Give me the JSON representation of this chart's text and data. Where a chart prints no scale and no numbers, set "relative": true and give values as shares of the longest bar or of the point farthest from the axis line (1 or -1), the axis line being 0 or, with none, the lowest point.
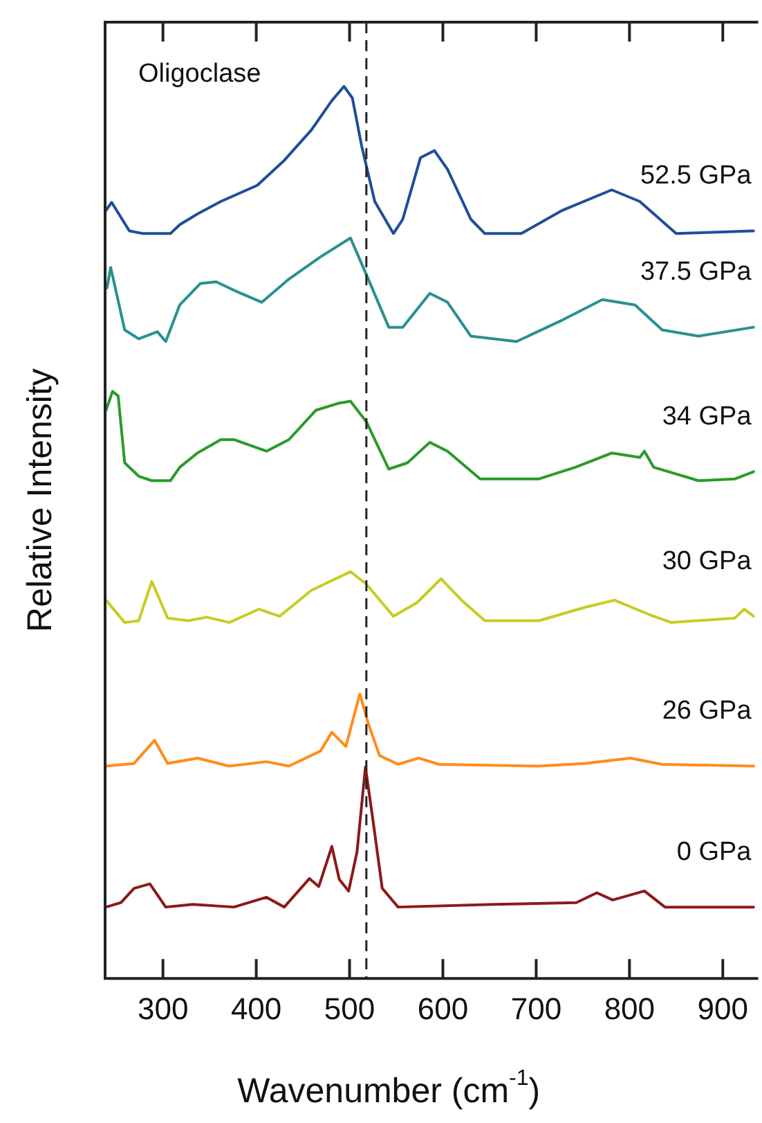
{
  "chart_data": {
    "type": "line",
    "xlabel": "Wavenumber (cm$^{-1}$)",
    "ylabel": "Relative Intensity",
    "relative": true,
    "annotations": [
      "Oligoclase"
    ],
    "xlim": [
      238,
      935
    ],
    "xticks": [
      300,
      400,
      500,
      600,
      700,
      800,
      900
    ],
    "grid": false,
    "legend": false,
    "marker": "none",
    "line_style": "solid",
    "ref_lines": [
      {
        "axis": "x",
        "value": 518,
        "color": "#222222",
        "line_style": "dashed"
      }
    ],
    "series": [
      {
        "name": "52.5 GPa",
        "color": "#1f4e99",
        "x": [
          239,
          245,
          264,
          279,
          308,
          318,
          337,
          362,
          401,
          430,
          459,
          481,
          494,
          503,
          513,
          527,
          547,
          557,
          576,
          591,
          605,
          630,
          645,
          684,
          728,
          781,
          811,
          850,
          933
        ],
        "values": [
          0.861,
          0.87,
          0.838,
          0.835,
          0.835,
          0.845,
          0.857,
          0.871,
          0.889,
          0.917,
          0.951,
          0.984,
          1.0,
          0.987,
          0.933,
          0.871,
          0.835,
          0.851,
          0.92,
          0.928,
          0.907,
          0.851,
          0.835,
          0.835,
          0.861,
          0.884,
          0.871,
          0.835,
          0.838
        ]
      },
      {
        "name": "37.5 GPa",
        "color": "#2a9090",
        "x": [
          240,
          244,
          259,
          274,
          294,
          303,
          318,
          340,
          357,
          377,
          406,
          435,
          469,
          501,
          518,
          542,
          557,
          586,
          605,
          630,
          679,
          728,
          771,
          806,
          835,
          874,
          933
        ],
        "values": [
          0.774,
          0.797,
          0.727,
          0.717,
          0.725,
          0.714,
          0.755,
          0.779,
          0.781,
          0.771,
          0.758,
          0.784,
          0.809,
          0.83,
          0.789,
          0.73,
          0.73,
          0.768,
          0.758,
          0.72,
          0.714,
          0.738,
          0.761,
          0.755,
          0.727,
          0.72,
          0.73
        ]
      },
      {
        "name": "34 GPa",
        "color": "#2a9a2a",
        "x": [
          239,
          246,
          252,
          259,
          274,
          288,
          308,
          318,
          337,
          362,
          376,
          411,
          435,
          464,
          489,
          501,
          518,
          542,
          562,
          586,
          605,
          640,
          703,
          742,
          781,
          811,
          816,
          826,
          874,
          913,
          933
        ],
        "values": [
          0.637,
          0.658,
          0.653,
          0.578,
          0.563,
          0.558,
          0.558,
          0.573,
          0.589,
          0.604,
          0.604,
          0.591,
          0.604,
          0.637,
          0.645,
          0.647,
          0.624,
          0.571,
          0.578,
          0.601,
          0.591,
          0.56,
          0.56,
          0.573,
          0.589,
          0.584,
          0.591,
          0.573,
          0.558,
          0.56,
          0.568
        ]
      },
      {
        "name": "30 GPa",
        "color": "#c8cc22",
        "x": [
          239,
          259,
          274,
          288,
          305,
          327,
          347,
          371,
          403,
          425,
          459,
          501,
          518,
          547,
          572,
          598,
          620,
          645,
          703,
          752,
          784,
          821,
          845,
          913,
          923,
          933
        ],
        "values": [
          0.424,
          0.399,
          0.401,
          0.445,
          0.404,
          0.401,
          0.405,
          0.399,
          0.414,
          0.406,
          0.435,
          0.456,
          0.442,
          0.406,
          0.421,
          0.448,
          0.424,
          0.401,
          0.401,
          0.416,
          0.424,
          0.408,
          0.399,
          0.404,
          0.414,
          0.406
        ]
      },
      {
        "name": "26 GPa",
        "color": "#ff8c1a",
        "x": [
          239,
          269,
          291,
          305,
          337,
          371,
          411,
          435,
          469,
          481,
          496,
          511,
          520,
          532,
          552,
          574,
          596,
          703,
          752,
          801,
          835,
          933
        ],
        "values": [
          0.238,
          0.241,
          0.267,
          0.241,
          0.247,
          0.238,
          0.243,
          0.238,
          0.255,
          0.276,
          0.26,
          0.319,
          0.286,
          0.25,
          0.24,
          0.247,
          0.24,
          0.238,
          0.241,
          0.247,
          0.24,
          0.238
        ]
      },
      {
        "name": "0 GPa",
        "color": "#8b1a1a",
        "x": [
          239,
          255,
          269,
          286,
          303,
          332,
          376,
          411,
          430,
          457,
          467,
          481,
          489,
          499,
          508,
          517,
          525,
          535,
          552,
          655,
          743,
          765,
          782,
          816,
          838,
          933
        ],
        "values": [
          0.08,
          0.085,
          0.101,
          0.106,
          0.08,
          0.083,
          0.08,
          0.091,
          0.08,
          0.112,
          0.103,
          0.148,
          0.111,
          0.098,
          0.142,
          0.237,
          0.178,
          0.101,
          0.08,
          0.083,
          0.085,
          0.096,
          0.088,
          0.098,
          0.08,
          0.08
        ]
      }
    ]
  }
}
